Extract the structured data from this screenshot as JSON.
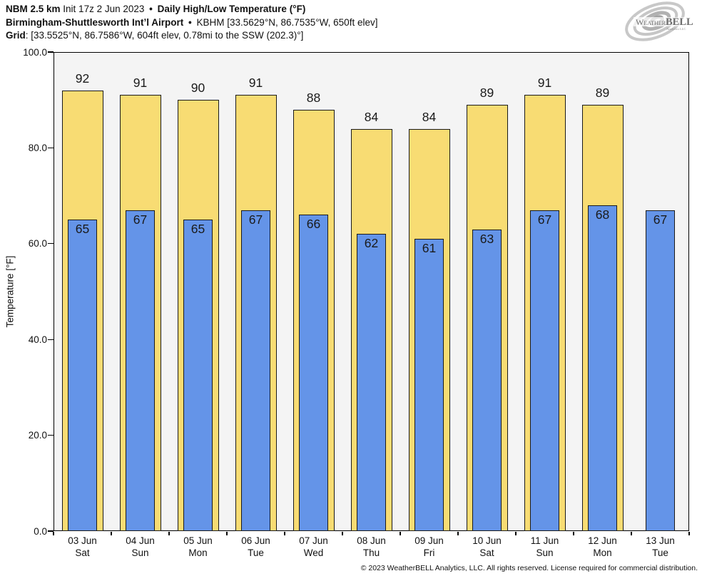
{
  "header": {
    "line1": {
      "model": "NBM 2.5 km",
      "init": "Init 17z 2 Jun 2023",
      "sep": "•",
      "product": "Daily High/Low Temperature (°F)"
    },
    "line2": {
      "station": "Birmingham-Shuttlesworth Intʼl Airport",
      "sep": "•",
      "details": "KBHM [33.5629°N, 86.7535°W, 650ft elev]"
    },
    "line3": {
      "label": "Grid",
      "details": ": [33.5525°N, 86.7586°W, 604ft elev, 0.78mi to the SSW (202.3)°]"
    }
  },
  "logo": {
    "brand_weather": "Weather",
    "brand_bell": "BELL",
    "subtext": "Analytics LLC"
  },
  "chart_data": {
    "type": "bar",
    "title": "Daily High/Low Temperature (°F)",
    "ylabel": "Temperature [°F]",
    "ylim": [
      0,
      100
    ],
    "yticks": [
      {
        "value": 0,
        "label": "0.0"
      },
      {
        "value": 20,
        "label": "20.0"
      },
      {
        "value": 40,
        "label": "40.0"
      },
      {
        "value": 60,
        "label": "60.0"
      },
      {
        "value": 80,
        "label": "80.0"
      },
      {
        "value": 100,
        "label": "100.0"
      }
    ],
    "grid": false,
    "legend_position": "none",
    "plot_background": "#f4f4f4",
    "bar_border_color": "#1a1a1a",
    "categories": [
      {
        "date": "03 Jun",
        "weekday": "Sat"
      },
      {
        "date": "04 Jun",
        "weekday": "Sun"
      },
      {
        "date": "05 Jun",
        "weekday": "Mon"
      },
      {
        "date": "06 Jun",
        "weekday": "Tue"
      },
      {
        "date": "07 Jun",
        "weekday": "Wed"
      },
      {
        "date": "08 Jun",
        "weekday": "Thu"
      },
      {
        "date": "09 Jun",
        "weekday": "Fri"
      },
      {
        "date": "10 Jun",
        "weekday": "Sat"
      },
      {
        "date": "11 Jun",
        "weekday": "Sun"
      },
      {
        "date": "12 Jun",
        "weekday": "Mon"
      },
      {
        "date": "13 Jun",
        "weekday": "Tue"
      }
    ],
    "series": [
      {
        "name": "High",
        "color": "#f8dc73",
        "values": [
          92,
          91,
          90,
          91,
          88,
          84,
          84,
          89,
          91,
          89,
          null
        ]
      },
      {
        "name": "Low",
        "color": "#6494e8",
        "values": [
          65,
          67,
          65,
          67,
          66,
          62,
          61,
          63,
          67,
          68,
          67
        ]
      }
    ]
  },
  "footer": {
    "copyright": "© 2023 WeatherBELL Analytics, LLC. All rights reserved. License required for commercial distribution."
  }
}
